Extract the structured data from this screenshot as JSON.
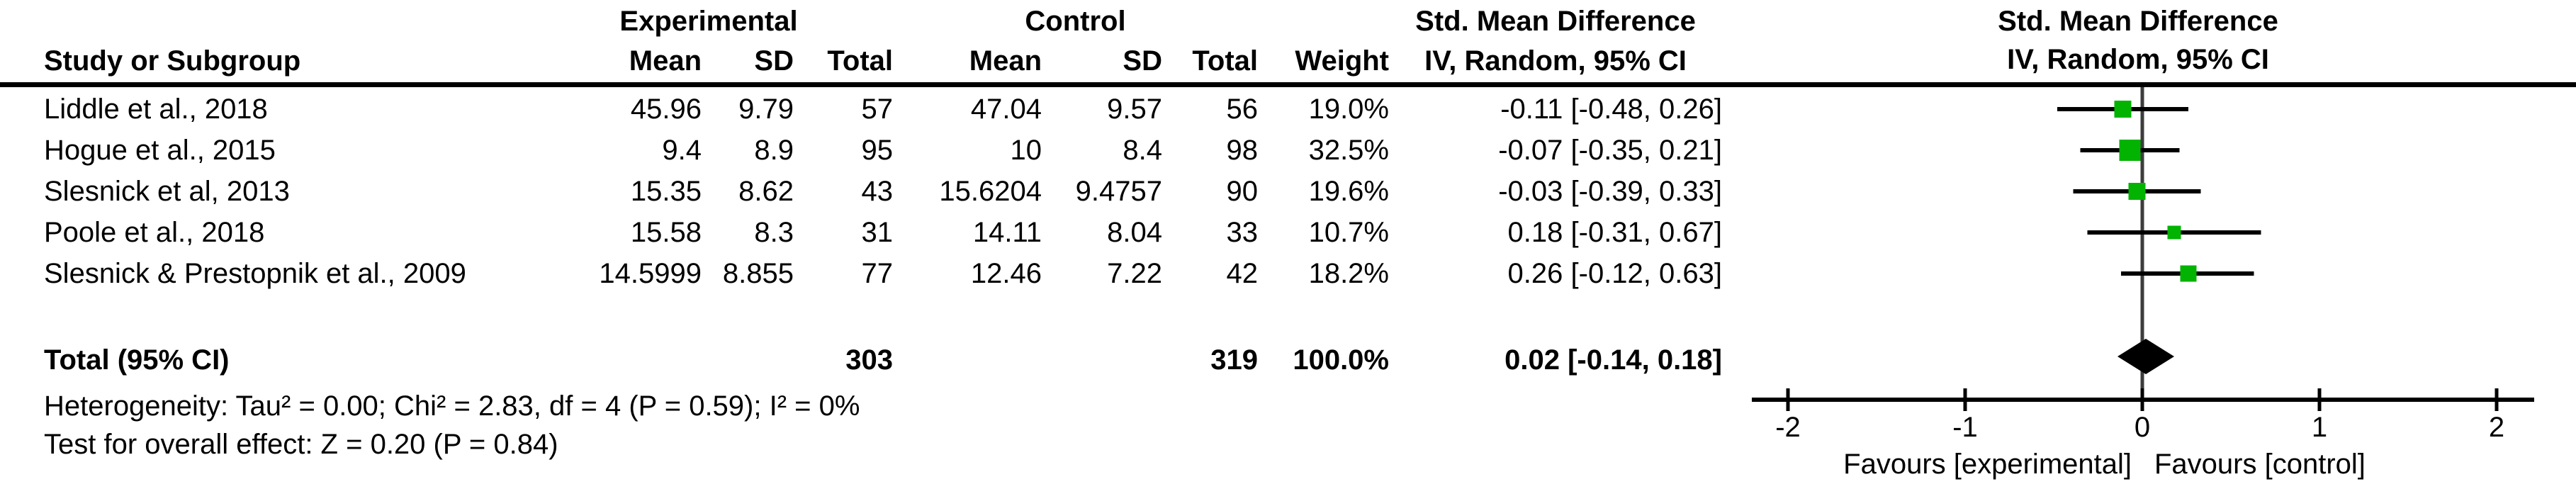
{
  "table": {
    "group_headers": {
      "experimental": "Experimental",
      "control": "Control",
      "smd_col": "Std. Mean Difference",
      "smd_plot": "Std. Mean Difference"
    },
    "col_headers": {
      "study": "Study or Subgroup",
      "exp_mean": "Mean",
      "exp_sd": "SD",
      "exp_total": "Total",
      "ctrl_mean": "Mean",
      "ctrl_sd": "SD",
      "ctrl_total": "Total",
      "weight": "Weight",
      "ci": "IV, Random, 95% CI",
      "ci_plot": "IV, Random, 95% CI"
    },
    "rows": [
      {
        "study": "Liddle et al., 2018",
        "exp_mean": "45.96",
        "exp_sd": "9.79",
        "exp_total": "57",
        "ctrl_mean": "47.04",
        "ctrl_sd": "9.57",
        "ctrl_total": "56",
        "weight": "19.0%",
        "ci": "-0.11 [-0.48, 0.26]"
      },
      {
        "study": "Hogue et al., 2015",
        "exp_mean": "9.4",
        "exp_sd": "8.9",
        "exp_total": "95",
        "ctrl_mean": "10",
        "ctrl_sd": "8.4",
        "ctrl_total": "98",
        "weight": "32.5%",
        "ci": "-0.07 [-0.35, 0.21]"
      },
      {
        "study": "Slesnick et al, 2013",
        "exp_mean": "15.35",
        "exp_sd": "8.62",
        "exp_total": "43",
        "ctrl_mean": "15.6204",
        "ctrl_sd": "9.4757",
        "ctrl_total": "90",
        "weight": "19.6%",
        "ci": "-0.03 [-0.39, 0.33]"
      },
      {
        "study": "Poole et al., 2018",
        "exp_mean": "15.58",
        "exp_sd": "8.3",
        "exp_total": "31",
        "ctrl_mean": "14.11",
        "ctrl_sd": "8.04",
        "ctrl_total": "33",
        "weight": "10.7%",
        "ci": "0.18 [-0.31, 0.67]"
      },
      {
        "study": "Slesnick & Prestopnik et al., 2009",
        "exp_mean": "14.5999",
        "exp_sd": "8.855",
        "exp_total": "77",
        "ctrl_mean": "12.46",
        "ctrl_sd": "7.22",
        "ctrl_total": "42",
        "weight": "18.2%",
        "ci": "0.26 [-0.12, 0.63]"
      }
    ],
    "total_row": {
      "label": "Total (95% CI)",
      "exp_total": "303",
      "ctrl_total": "319",
      "weight": "100.0%",
      "ci": "0.02 [-0.14, 0.18]"
    },
    "footnotes": {
      "heterogeneity": "Heterogeneity: Tau² = 0.00; Chi² = 2.83, df = 4 (P = 0.59); I² = 0%",
      "overall_effect": "Test for overall effect: Z = 0.20 (P = 0.84)"
    }
  },
  "chart_data": {
    "type": "forest",
    "effect_measure": "Std. Mean Difference",
    "model": "IV, Random, 95% CI",
    "studies": [
      "Liddle et al., 2018",
      "Hogue et al., 2015",
      "Slesnick et al, 2013",
      "Poole et al., 2018",
      "Slesnick & Prestopnik et al., 2009"
    ],
    "estimates": [
      -0.11,
      -0.07,
      -0.03,
      0.18,
      0.26
    ],
    "ci_low": [
      -0.48,
      -0.35,
      -0.39,
      -0.31,
      -0.12
    ],
    "ci_high": [
      0.26,
      0.21,
      0.33,
      0.67,
      0.63
    ],
    "weights_pct": [
      19.0,
      32.5,
      19.6,
      10.7,
      18.2
    ],
    "total": {
      "estimate": 0.02,
      "ci_low": -0.14,
      "ci_high": 0.18,
      "weight_pct": 100.0
    },
    "heterogeneity": {
      "tau2": 0.0,
      "chi2": 2.83,
      "df": 4,
      "p": 0.59,
      "i2_pct": 0
    },
    "overall_effect": {
      "z": 0.2,
      "p": 0.84
    },
    "axis": {
      "min": -2,
      "max": 2,
      "ticks": [
        -2,
        -1,
        0,
        1,
        2
      ],
      "tick_labels": [
        "-2",
        "-1",
        "0",
        "1",
        "2"
      ]
    },
    "xlabel_left": "Favours [experimental]",
    "xlabel_right": "Favours [control]",
    "marker_color": "#02B302",
    "diamond_color": "#000000",
    "line_color": "#000000",
    "zero_line_color": "#3d3d3d"
  }
}
